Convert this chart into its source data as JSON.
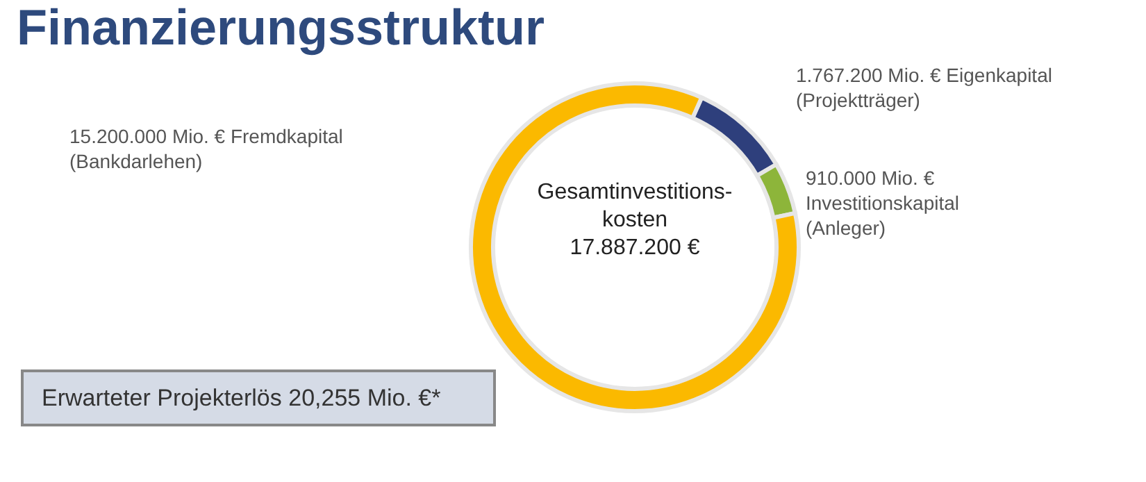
{
  "chart_data": {
    "type": "donut",
    "title": "Finanzierungsstruktur",
    "categories": [
      "1.767.200 Mio. € Eigenkapital\n(Projektträger)",
      "910.000 Mio. €\nInvestitionskapital\n(Anleger)",
      "15.200.000 Mio. € Fremdkapital\n(Bankdarlehen)"
    ],
    "values": [
      1767200,
      910000,
      15200000
    ],
    "colors": [
      "#2e3f7c",
      "#8db53a",
      "#fbb900"
    ],
    "annotations": [
      "Gesamtinvestitions-\nkosten\n17.887.200 €",
      "Erwarteter Projekterlös 20,255 Mio. €*"
    ]
  }
}
